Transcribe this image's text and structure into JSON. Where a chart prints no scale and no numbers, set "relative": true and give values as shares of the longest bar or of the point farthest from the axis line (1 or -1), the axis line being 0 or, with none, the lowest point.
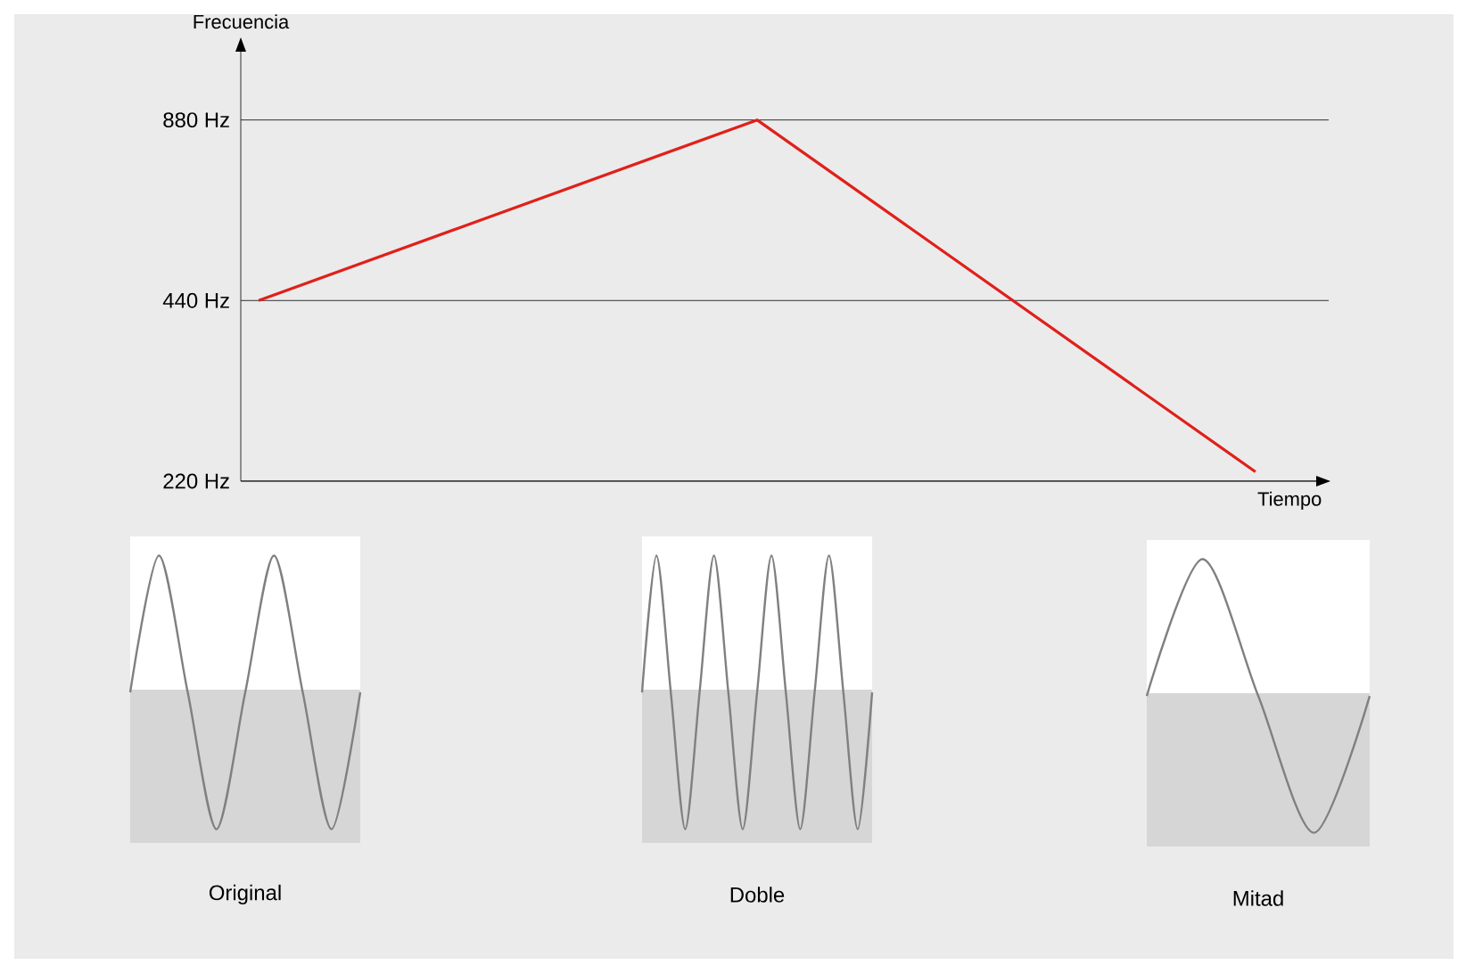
{
  "chart_data": [
    {
      "type": "line",
      "xlabel": "Tiempo",
      "ylabel": "Frecuencia",
      "categories": [
        null,
        null,
        null
      ],
      "series": [
        {
          "color": "#e0201b",
          "values": [
            440,
            880,
            228
          ]
        }
      ],
      "log": "y",
      "ylim": [
        220,
        1200
      ],
      "yticks": [
        {
          "value": 220,
          "label": "220 Hz"
        },
        {
          "value": 440,
          "label": "440 Hz"
        },
        {
          "value": 880,
          "label": "880 Hz"
        }
      ],
      "grid": "y",
      "marker": "none",
      "line_style": "solid"
    },
    {
      "type": "line",
      "relative": true,
      "xlabel": "Original",
      "categories": [
        null,
        null,
        null,
        null,
        null,
        null,
        null,
        null,
        null
      ],
      "series": [
        {
          "color": "#808080",
          "values": [
            0,
            1,
            0,
            -1,
            0,
            1,
            0,
            -1,
            0
          ]
        }
      ],
      "marker": "none"
    },
    {
      "type": "line",
      "relative": true,
      "xlabel": "Doble",
      "categories": [
        null,
        null,
        null,
        null,
        null,
        null,
        null,
        null,
        null,
        null,
        null,
        null,
        null,
        null,
        null,
        null,
        null
      ],
      "series": [
        {
          "color": "#808080",
          "values": [
            0,
            1,
            0,
            -1,
            0,
            1,
            0,
            -1,
            0,
            1,
            0,
            -1,
            0,
            1,
            0,
            -1,
            0
          ]
        }
      ],
      "marker": "none"
    },
    {
      "type": "line",
      "relative": true,
      "xlabel": "Mitad",
      "categories": [
        null,
        null,
        null,
        null,
        null
      ],
      "series": [
        {
          "color": "#808080",
          "values": [
            0,
            1,
            0,
            -1,
            0
          ]
        }
      ],
      "marker": "none"
    }
  ]
}
